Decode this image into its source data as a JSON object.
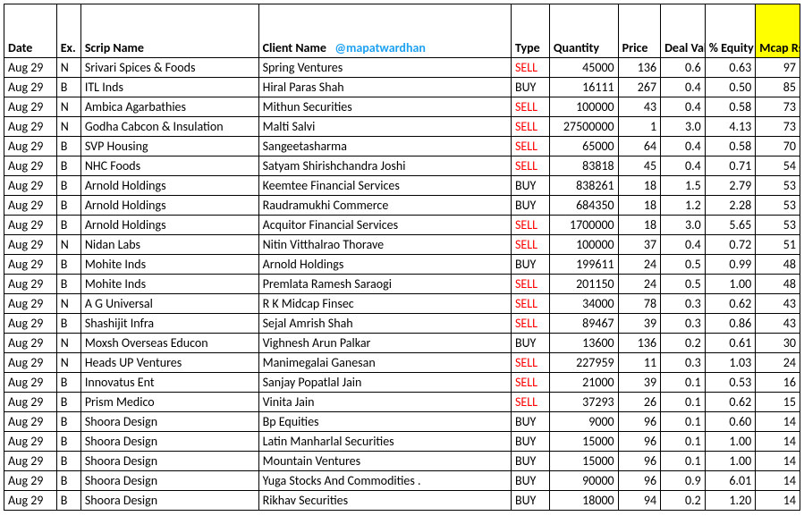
{
  "columns": {
    "date": "Date",
    "ex": "Ex.",
    "scrip": "Scrip Name",
    "client": "Client Name",
    "handle": "@mapatwardhan",
    "type": "Type",
    "qty": "Quantity",
    "price": "Price",
    "deal": "Deal Value Rs Cr",
    "equity": "% Equity stake",
    "mcap": "Mcap Rs Cr"
  },
  "colors": {
    "sell": "#ff0000",
    "highlight": "#ffff00",
    "handle": "#1da1f2"
  },
  "rows": [
    {
      "date": "Aug 29",
      "ex": "N",
      "scrip": "Srivari Spices & Foods",
      "client": "Spring Ventures",
      "type": "SELL",
      "qty": "45000",
      "price": "136",
      "deal": "0.6",
      "equity": "0.63",
      "mcap": "97"
    },
    {
      "date": "Aug 29",
      "ex": "B",
      "scrip": "ITL Inds",
      "client": "Hiral Paras Shah",
      "type": "BUY",
      "qty": "16111",
      "price": "267",
      "deal": "0.4",
      "equity": "0.50",
      "mcap": "85"
    },
    {
      "date": "Aug 29",
      "ex": "N",
      "scrip": "Ambica Agarbathies",
      "client": "Mithun Securities",
      "type": "SELL",
      "qty": "100000",
      "price": "43",
      "deal": "0.4",
      "equity": "0.58",
      "mcap": "73"
    },
    {
      "date": "Aug 29",
      "ex": "N",
      "scrip": "Godha Cabcon & Insulation",
      "client": "Malti  Salvi",
      "type": "SELL",
      "qty": "27500000",
      "price": "1",
      "deal": "3.0",
      "equity": "4.13",
      "mcap": "73"
    },
    {
      "date": "Aug 29",
      "ex": "B",
      "scrip": "SVP Housing",
      "client": "Sangeetasharma",
      "type": "SELL",
      "qty": "65000",
      "price": "64",
      "deal": "0.4",
      "equity": "0.58",
      "mcap": "70"
    },
    {
      "date": "Aug 29",
      "ex": "B",
      "scrip": "NHC Foods",
      "client": "Satyam Shirishchandra Joshi",
      "type": "SELL",
      "qty": "83818",
      "price": "45",
      "deal": "0.4",
      "equity": "0.71",
      "mcap": "54"
    },
    {
      "date": "Aug 29",
      "ex": "B",
      "scrip": "Arnold Holdings",
      "client": "Keemtee Financial Services",
      "type": "BUY",
      "qty": "838261",
      "price": "18",
      "deal": "1.5",
      "equity": "2.79",
      "mcap": "53"
    },
    {
      "date": "Aug 29",
      "ex": "B",
      "scrip": "Arnold Holdings",
      "client": "Raudramukhi Commerce",
      "type": "BUY",
      "qty": "684350",
      "price": "18",
      "deal": "1.2",
      "equity": "2.28",
      "mcap": "53"
    },
    {
      "date": "Aug 29",
      "ex": "B",
      "scrip": "Arnold Holdings",
      "client": "Acquitor Financial Services",
      "type": "SELL",
      "qty": "1700000",
      "price": "18",
      "deal": "3.0",
      "equity": "5.65",
      "mcap": "53"
    },
    {
      "date": "Aug 29",
      "ex": "N",
      "scrip": "Nidan Labs",
      "client": "Nitin Vitthalrao Thorave",
      "type": "SELL",
      "qty": "100000",
      "price": "37",
      "deal": "0.4",
      "equity": "0.72",
      "mcap": "51"
    },
    {
      "date": "Aug 29",
      "ex": "B",
      "scrip": "Mohite Inds",
      "client": "Arnold Holdings",
      "type": "BUY",
      "qty": "199611",
      "price": "24",
      "deal": "0.5",
      "equity": "0.99",
      "mcap": "48"
    },
    {
      "date": "Aug 29",
      "ex": "B",
      "scrip": "Mohite Inds",
      "client": "Premlata Ramesh Saraogi",
      "type": "SELL",
      "qty": "201150",
      "price": "24",
      "deal": "0.5",
      "equity": "1.00",
      "mcap": "48"
    },
    {
      "date": "Aug 29",
      "ex": "N",
      "scrip": "A G Universal",
      "client": "R K Midcap Finsec",
      "type": "SELL",
      "qty": "34000",
      "price": "78",
      "deal": "0.3",
      "equity": "0.62",
      "mcap": "43"
    },
    {
      "date": "Aug 29",
      "ex": "B",
      "scrip": "Shashijit Infra",
      "client": "Sejal Amrish Shah",
      "type": "SELL",
      "qty": "89467",
      "price": "39",
      "deal": "0.3",
      "equity": "0.86",
      "mcap": "43"
    },
    {
      "date": "Aug 29",
      "ex": "N",
      "scrip": "Moxsh Overseas Educon",
      "client": "Vighnesh Arun Palkar",
      "type": "BUY",
      "qty": "13600",
      "price": "136",
      "deal": "0.2",
      "equity": "0.61",
      "mcap": "30"
    },
    {
      "date": "Aug 29",
      "ex": "N",
      "scrip": "Heads UP Ventures",
      "client": "Manimegalai Ganesan",
      "type": "SELL",
      "qty": "227959",
      "price": "11",
      "deal": "0.3",
      "equity": "1.03",
      "mcap": "24"
    },
    {
      "date": "Aug 29",
      "ex": "B",
      "scrip": "Innovatus Ent",
      "client": "Sanjay Popatlal Jain",
      "type": "SELL",
      "qty": "21000",
      "price": "39",
      "deal": "0.1",
      "equity": "0.53",
      "mcap": "16"
    },
    {
      "date": "Aug 29",
      "ex": "B",
      "scrip": "Prism Medico",
      "client": "Vinita Jain",
      "type": "SELL",
      "qty": "37293",
      "price": "26",
      "deal": "0.1",
      "equity": "0.62",
      "mcap": "15"
    },
    {
      "date": "Aug 29",
      "ex": "B",
      "scrip": "Shoora Design",
      "client": "Bp Equities",
      "type": "BUY",
      "qty": "9000",
      "price": "96",
      "deal": "0.1",
      "equity": "0.60",
      "mcap": "14"
    },
    {
      "date": "Aug 29",
      "ex": "B",
      "scrip": "Shoora Design",
      "client": "Latin Manharlal Securities",
      "type": "BUY",
      "qty": "15000",
      "price": "96",
      "deal": "0.1",
      "equity": "1.00",
      "mcap": "14"
    },
    {
      "date": "Aug 29",
      "ex": "B",
      "scrip": "Shoora Design",
      "client": "Mountain Ventures",
      "type": "BUY",
      "qty": "15000",
      "price": "96",
      "deal": "0.1",
      "equity": "1.00",
      "mcap": "14"
    },
    {
      "date": "Aug 29",
      "ex": "B",
      "scrip": "Shoora Design",
      "client": "Yuga Stocks And Commodities   .",
      "type": "BUY",
      "qty": "90000",
      "price": "96",
      "deal": "0.9",
      "equity": "6.01",
      "mcap": "14"
    },
    {
      "date": "Aug 29",
      "ex": "B",
      "scrip": "Shoora Design",
      "client": "Rikhav Securities",
      "type": "BUY",
      "qty": "18000",
      "price": "94",
      "deal": "0.2",
      "equity": "1.20",
      "mcap": "14"
    }
  ]
}
